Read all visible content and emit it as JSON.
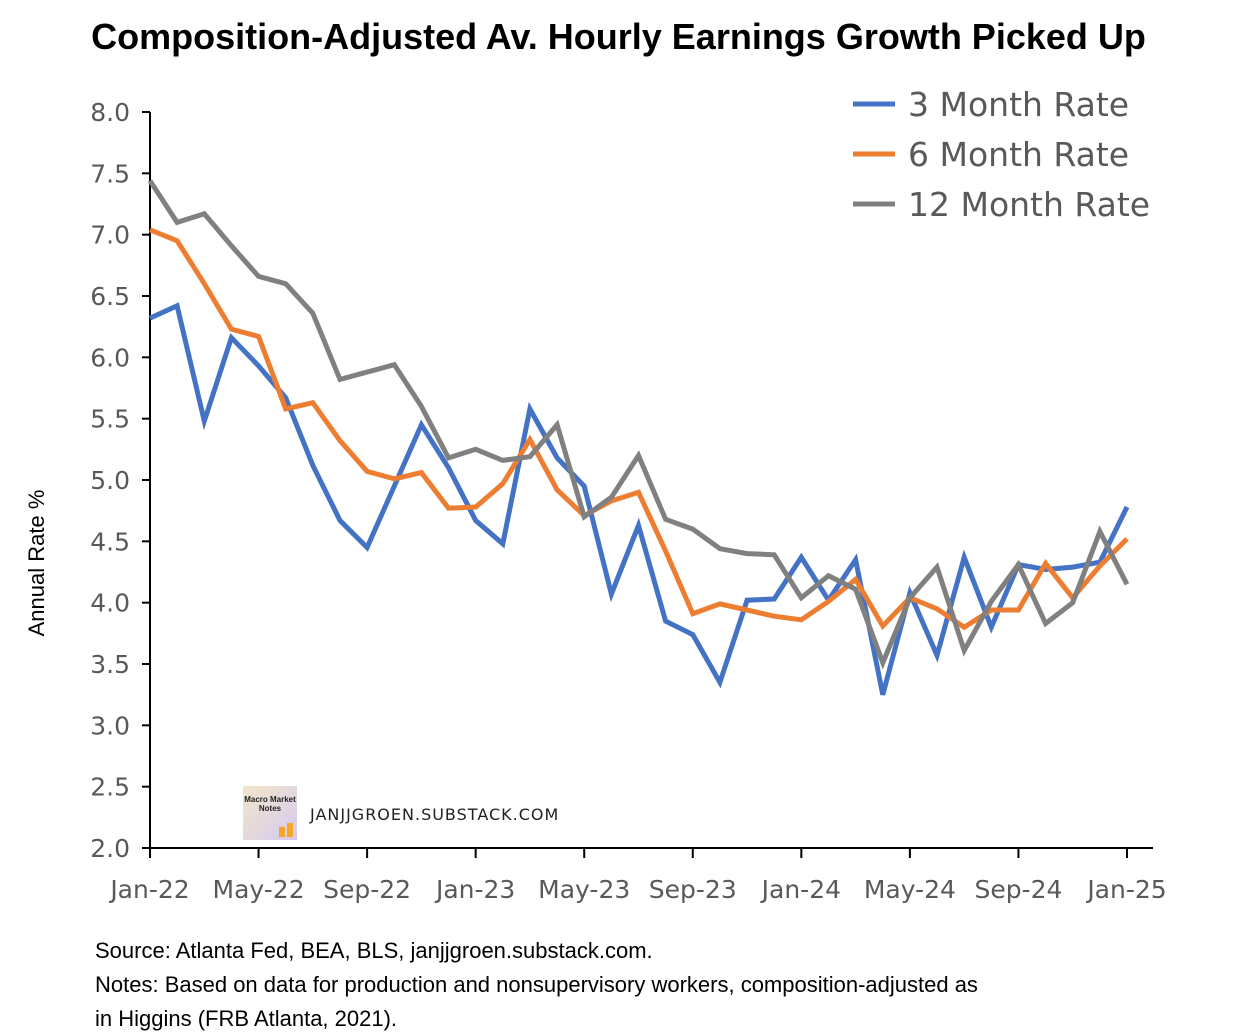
{
  "chart_data": {
    "type": "line",
    "title": "Composition-Adjusted Av. Hourly Earnings Growth Picked Up",
    "xlabel": "",
    "ylabel": "Annual Rate %",
    "ylim": [
      2.0,
      8.0
    ],
    "yticks": [
      "2.0",
      "2.5",
      "3.0",
      "3.5",
      "4.0",
      "4.5",
      "5.0",
      "5.5",
      "6.0",
      "6.5",
      "7.0",
      "7.5",
      "8.0"
    ],
    "xticks": [
      "Jan-22",
      "May-22",
      "Sep-22",
      "Jan-23",
      "May-23",
      "Sep-23",
      "Jan-24",
      "May-24",
      "Sep-24",
      "Jan-25"
    ],
    "x_months": 37,
    "legend_position": "top-right",
    "series": [
      {
        "name": "3 Month Rate",
        "color": "#4472C4",
        "values": [
          6.32,
          6.42,
          5.48,
          6.16,
          5.93,
          5.67,
          5.12,
          4.67,
          4.45,
          4.95,
          5.45,
          5.1,
          4.67,
          4.48,
          5.58,
          5.18,
          4.95,
          4.07,
          4.63,
          3.85,
          3.74,
          3.35,
          4.02,
          4.03,
          4.37,
          4.02,
          4.35,
          3.25,
          4.08,
          3.57,
          4.37,
          3.8,
          4.31,
          4.27,
          4.29,
          4.33,
          4.78
        ]
      },
      {
        "name": "6 Month Rate",
        "color": "#ED7D31",
        "values": [
          7.04,
          6.95,
          6.6,
          6.23,
          6.17,
          5.58,
          5.63,
          5.32,
          5.07,
          5.01,
          5.06,
          4.77,
          4.78,
          4.97,
          5.33,
          4.92,
          4.71,
          4.83,
          4.9,
          4.42,
          3.91,
          3.99,
          3.94,
          3.89,
          3.86,
          4.01,
          4.19,
          3.81,
          4.04,
          3.95,
          3.8,
          3.94,
          3.94,
          4.32,
          4.04,
          4.3,
          4.52
        ]
      },
      {
        "name": "12 Month Rate",
        "color": "#808080",
        "values": [
          7.44,
          7.1,
          7.17,
          6.91,
          6.66,
          6.6,
          6.36,
          5.82,
          5.88,
          5.94,
          5.6,
          5.18,
          5.25,
          5.16,
          5.19,
          5.45,
          4.7,
          4.86,
          5.2,
          4.68,
          4.6,
          4.44,
          4.4,
          4.39,
          4.04,
          4.22,
          4.11,
          3.51,
          4.04,
          4.29,
          3.61,
          4.01,
          4.31,
          3.83,
          4.0,
          4.58,
          4.15
        ]
      }
    ]
  },
  "notes": {
    "source": "Source: Atlanta Fed, BEA, BLS, janjjgroen.substack.com.",
    "line2": "Notes: Based on data for production and nonsupervisory workers, composition-adjusted as",
    "line3": "in Higgins (FRB Atlanta, 2021)."
  },
  "watermark": {
    "text": "JANJJGROEN.SUBSTACK.COM",
    "logo_text": "Macro Market Notes"
  }
}
